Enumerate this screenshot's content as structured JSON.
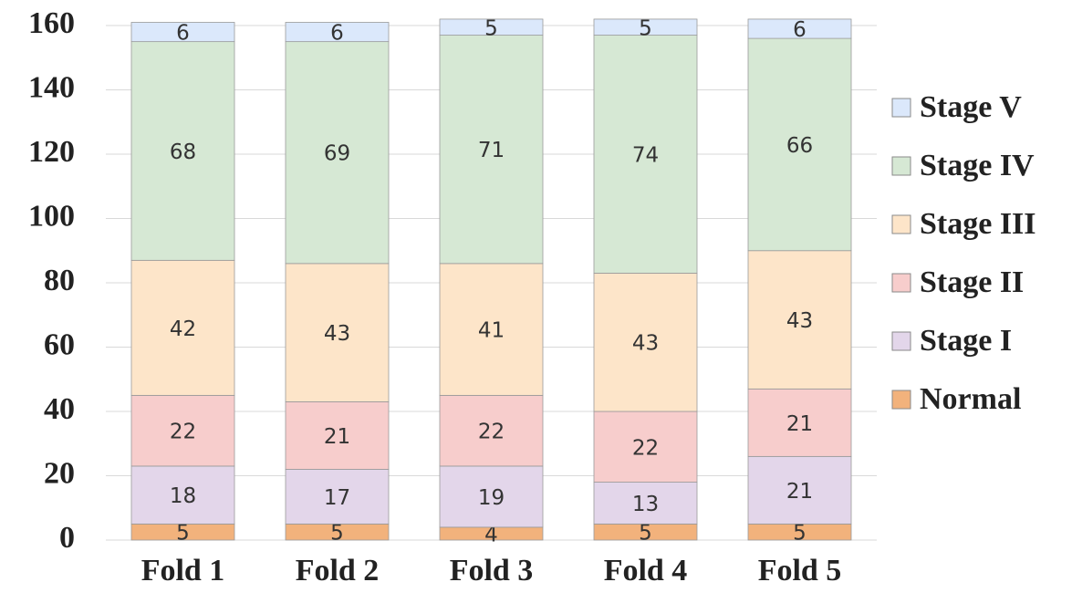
{
  "chart_data": {
    "type": "stacked_bar",
    "categories": [
      "Fold 1",
      "Fold 2",
      "Fold 3",
      "Fold 4",
      "Fold 5"
    ],
    "series": [
      {
        "name": "Normal",
        "color": "#f2b27c",
        "values": [
          5,
          5,
          4,
          5,
          5
        ]
      },
      {
        "name": "Stage I",
        "color": "#e3d6ea",
        "values": [
          18,
          17,
          19,
          13,
          21
        ]
      },
      {
        "name": "Stage II",
        "color": "#f7cdcc",
        "values": [
          22,
          21,
          22,
          22,
          21
        ]
      },
      {
        "name": "Stage III",
        "color": "#fde5c9",
        "values": [
          42,
          43,
          41,
          43,
          43
        ]
      },
      {
        "name": "Stage IV",
        "color": "#d6e8d4",
        "values": [
          68,
          69,
          71,
          74,
          66
        ]
      },
      {
        "name": "Stage V",
        "color": "#dbe8fb",
        "values": [
          6,
          6,
          5,
          5,
          6
        ]
      }
    ],
    "ylim": [
      0,
      160
    ],
    "yticks": [
      0,
      20,
      40,
      60,
      80,
      100,
      120,
      140,
      160
    ],
    "grid": true,
    "legend": "right"
  }
}
